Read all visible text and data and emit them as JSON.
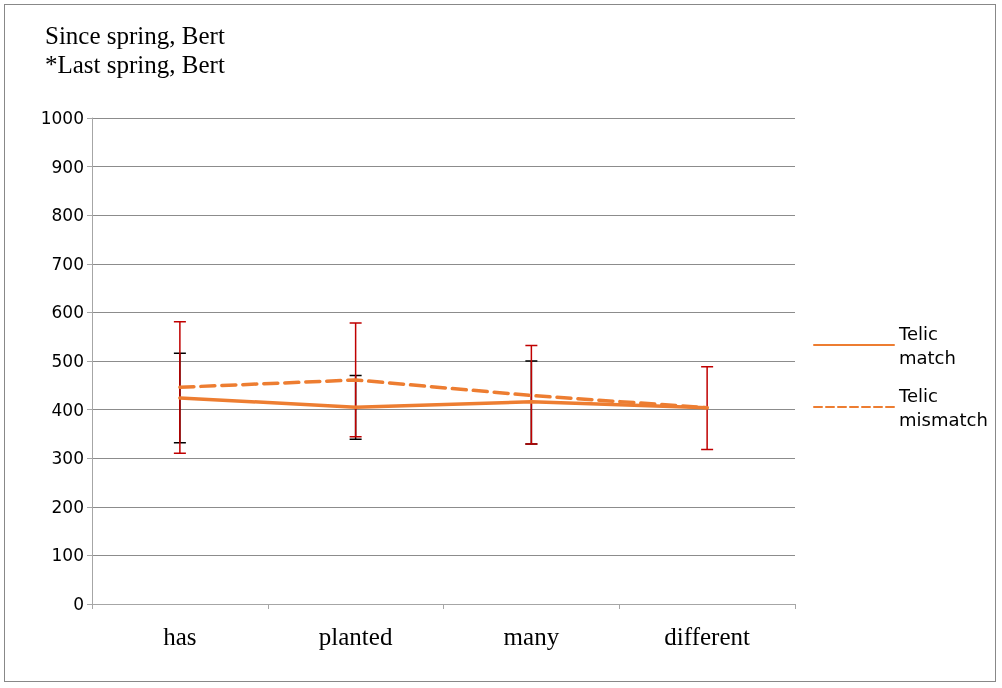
{
  "chart_data": {
    "type": "line",
    "title": "Since spring, Bert",
    "subtitle": "*Last spring, Bert",
    "categories": [
      "has",
      "planted",
      "many",
      "different"
    ],
    "series": [
      {
        "name": "Telic match",
        "color": "#ed7d31",
        "line_style": "solid",
        "values": [
          424,
          405,
          416,
          404
        ],
        "errors": [
          [
            332,
            516
          ],
          [
            339,
            470
          ],
          [
            329,
            500
          ],
          null
        ]
      },
      {
        "name": "Telic mismatch",
        "color": "#ed7d31",
        "line_style": "dashed",
        "values": [
          446,
          461,
          429,
          404
        ],
        "errors": [
          [
            310,
            581
          ],
          [
            344,
            578
          ],
          [
            329,
            532
          ],
          [
            318,
            488
          ]
        ]
      }
    ],
    "ylim": [
      0,
      1000
    ],
    "yticks": [
      0,
      100,
      200,
      300,
      400,
      500,
      600,
      700,
      800,
      900,
      1000
    ],
    "grid": "y",
    "legend": "right",
    "marker": "none"
  }
}
